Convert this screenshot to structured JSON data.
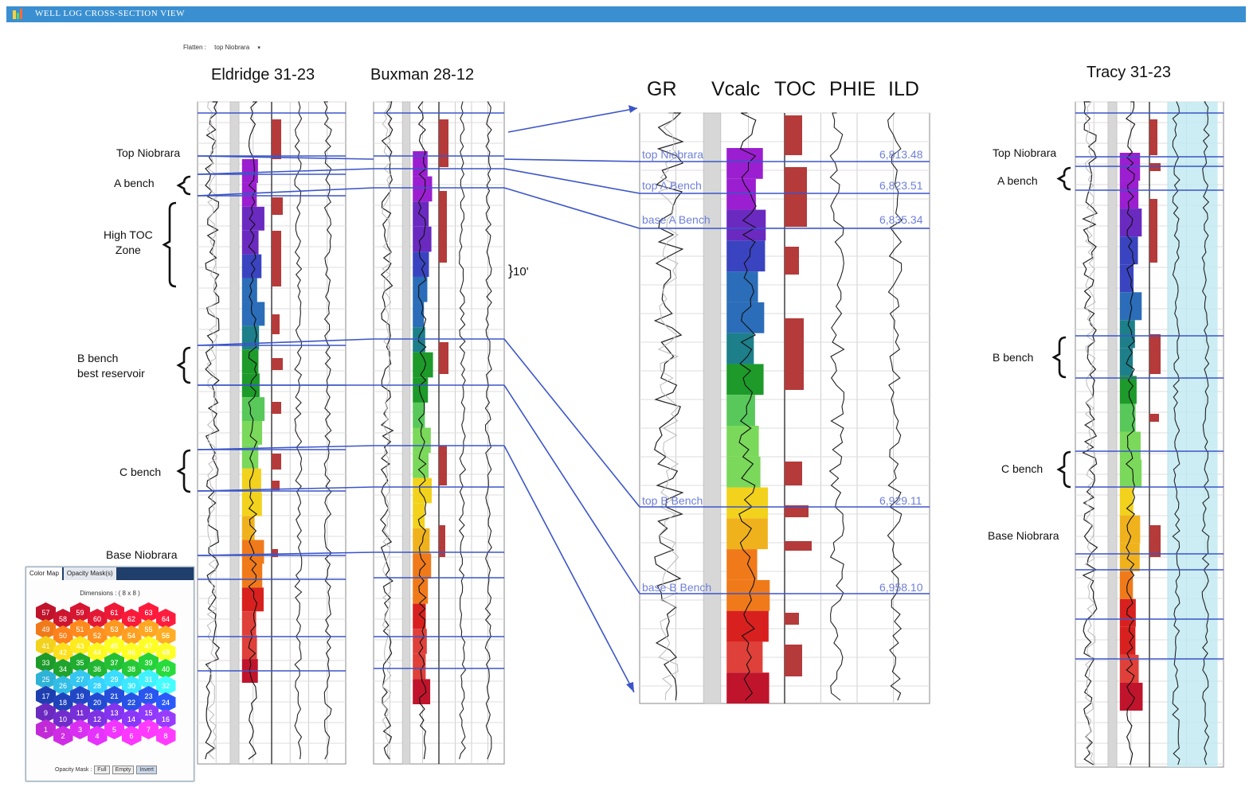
{
  "window": {
    "title": "WELL LOG CROSS-SECTION VIEW"
  },
  "flatten": {
    "label": "Flatten :",
    "value": "top Niobrara"
  },
  "wells": [
    {
      "name": "Eldridge 31-23"
    },
    {
      "name": "Buxman 28-12"
    },
    {
      "name": "Tracy 31-23"
    }
  ],
  "curve_headers": [
    "GR",
    "Vcalc",
    "TOC",
    "PHIE",
    "ILD"
  ],
  "zones_left": {
    "top_niobrara": "Top Niobrara",
    "a_bench": "A bench",
    "high_toc_1": "High TOC",
    "high_toc_2": "Zone",
    "b_bench_1": "B bench",
    "b_bench_2": "best reservoir",
    "c_bench": "C bench",
    "base_niobrara": "Base Niobrara"
  },
  "zones_right": {
    "top_niobrara": "Top Niobrara",
    "a_bench": "A bench",
    "b_bench": "B bench",
    "c_bench": "C bench",
    "base_niobrara": "Base Niobrara"
  },
  "scale_label": "10'",
  "detail_tops": [
    {
      "name": "top Niobrara",
      "md": "6,813.48"
    },
    {
      "name": "top A Bench",
      "md": "6,823.51"
    },
    {
      "name": "base A Bench",
      "md": "6,835.34"
    },
    {
      "name": "top B Bench",
      "md": "6,929.11"
    },
    {
      "name": "base B Bench",
      "md": "6,958.10"
    }
  ],
  "color_map": {
    "tabs": [
      "Color Map",
      "Opacity Mask(s)"
    ],
    "dimensions": "Dimensions : ( 8 x 8 )",
    "cells": [
      57,
      58,
      59,
      60,
      61,
      62,
      63,
      64,
      49,
      50,
      51,
      52,
      53,
      54,
      55,
      56,
      41,
      42,
      43,
      44,
      45,
      46,
      47,
      48,
      33,
      34,
      35,
      36,
      37,
      38,
      39,
      40,
      25,
      26,
      27,
      28,
      29,
      30,
      31,
      32,
      17,
      18,
      19,
      20,
      21,
      22,
      23,
      24,
      9,
      10,
      11,
      12,
      13,
      14,
      15,
      16,
      1,
      2,
      3,
      4,
      5,
      6,
      7,
      8
    ],
    "row_colors": [
      "#c0142c",
      "#f07a1a",
      "#f2d21c",
      "#1d9a2a",
      "#2fb2d8",
      "#1e3fb0",
      "#6a2ac0",
      "#c22ad8"
    ],
    "opacity_label": "Opacity Mask :",
    "buttons": [
      "Full",
      "Empty",
      "Invert"
    ]
  },
  "colors": {
    "title_bar": "#3a8fd0",
    "tops_line": "#3b55c8",
    "toc_fill": "#b53a3a",
    "phie_fill": "#bfe8f0"
  }
}
